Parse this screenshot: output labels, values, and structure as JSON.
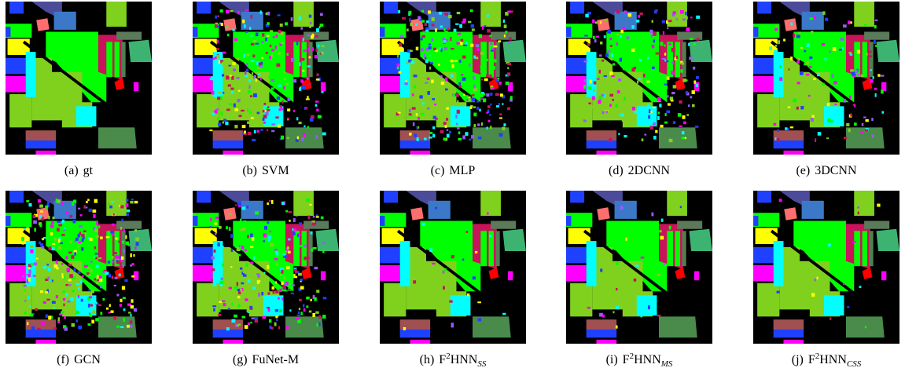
{
  "panels": [
    {
      "label": "(a)",
      "name": "gt"
    },
    {
      "label": "(b)",
      "name": "SVM"
    },
    {
      "label": "(c)",
      "name": "MLP"
    },
    {
      "label": "(d)",
      "name": "2DCNN"
    },
    {
      "label": "(e)",
      "name": "3DCNN"
    },
    {
      "label": "(f)",
      "name": "GCN"
    },
    {
      "label": "(g)",
      "name": "FuNet-M"
    },
    {
      "label": "(h)",
      "name": "F",
      "sup": "2",
      "name2": "HNN",
      "sub": "SS"
    },
    {
      "label": "(i)",
      "name": "F",
      "sup": "2",
      "name2": "HNN",
      "sub": "MS"
    },
    {
      "label": "(j)",
      "name": "F",
      "sup": "2",
      "name2": "HNN",
      "sub": "CSS"
    }
  ]
}
